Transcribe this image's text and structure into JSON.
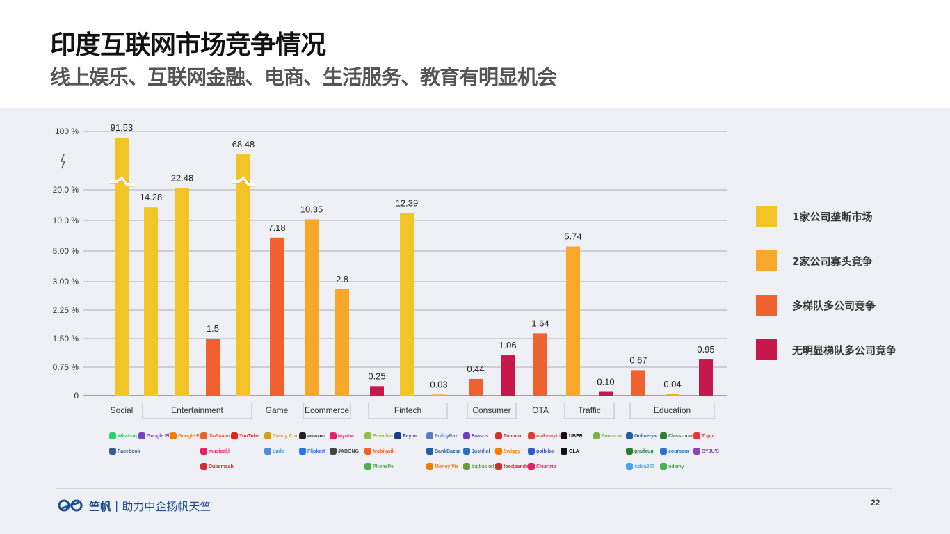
{
  "header": {
    "title": "印度互联网市场竞争情况",
    "subtitle": "线上娱乐、互联网金融、电商、生活服务、教育有明显机会"
  },
  "chart_data": {
    "type": "bar",
    "y_ticks": [
      "0",
      "0.75 %",
      "1.50 %",
      "2.25 %",
      "3.00 %",
      "5.00 %",
      "10.0 %",
      "20.0 %",
      "100 %"
    ],
    "y_tick_values": [
      0,
      0.75,
      1.5,
      2.25,
      3,
      5,
      10,
      20,
      100
    ],
    "axis_break": "between 20.0 % and 100 %",
    "grid": true,
    "legend_position": "right",
    "legend": [
      {
        "label": "1家公司垄断市场",
        "color": "#f2c428"
      },
      {
        "label": "2家公司寡头竞争",
        "color": "#f9a72b"
      },
      {
        "label": "多梯队多公司竞争",
        "color": "#f0622d"
      },
      {
        "label": "无明显梯队多公司竞争",
        "color": "#c8174d"
      }
    ],
    "bars": [
      {
        "value": 91.53,
        "label": "91.53",
        "group": 0,
        "broken": true
      },
      {
        "value": 14.28,
        "label": "14.28",
        "group": 0
      },
      {
        "value": 22.48,
        "label": "22.48",
        "group": 0
      },
      {
        "value": 1.5,
        "label": "1.5",
        "group": 2
      },
      {
        "value": 68.48,
        "label": "68.48",
        "group": 0,
        "broken": true
      },
      {
        "value": 7.18,
        "label": "7.18",
        "group": 2
      },
      {
        "value": 10.35,
        "label": "10.35",
        "group": 1
      },
      {
        "value": 2.8,
        "label": "2.8",
        "group": 1
      },
      {
        "value": 0.25,
        "label": "0.25",
        "group": 3
      },
      {
        "value": 12.39,
        "label": "12.39",
        "group": 0
      },
      {
        "value": 0.03,
        "label": "0.03",
        "group": 1
      },
      {
        "value": 0.44,
        "label": "0.44",
        "group": 2
      },
      {
        "value": 1.06,
        "label": "1.06",
        "group": 3
      },
      {
        "value": 1.64,
        "label": "1.64",
        "group": 2
      },
      {
        "value": 5.74,
        "label": "5.74",
        "group": 1
      },
      {
        "value": 0.1,
        "label": "0.10",
        "group": 3
      },
      {
        "value": 0.67,
        "label": "0.67",
        "group": 2
      },
      {
        "value": 0.04,
        "label": "0.04",
        "group": 1
      },
      {
        "value": 0.95,
        "label": "0.95",
        "group": 3
      }
    ],
    "categories": [
      {
        "label": "Social",
        "bars": [
          0,
          0
        ],
        "bracket": false
      },
      {
        "label": "Entertainment",
        "bars": [
          1,
          4
        ],
        "bracket": true
      },
      {
        "label": "Game",
        "bars": [
          5,
          5
        ],
        "bracket": false
      },
      {
        "label": "Ecommerce",
        "bars": [
          6,
          7
        ],
        "bracket": true
      },
      {
        "label": "Fintech",
        "bars": [
          8,
          10
        ],
        "bracket": true
      },
      {
        "label": "Consumer",
        "bars": [
          11,
          12
        ],
        "bracket": true
      },
      {
        "label": "OTA",
        "bars": [
          13,
          13
        ],
        "bracket": false
      },
      {
        "label": "Traffic",
        "bars": [
          14,
          15
        ],
        "bracket": true
      },
      {
        "label": "Education",
        "bars": [
          16,
          18
        ],
        "bracket": true
      }
    ],
    "logos": [
      {
        "name": "WhatsApp",
        "color": "#25d366",
        "bar": 0,
        "row": 0
      },
      {
        "name": "Facebook",
        "color": "#3b5998",
        "bar": 0,
        "row": 1
      },
      {
        "name": "Google Play Movies",
        "color": "#7b3fc4",
        "bar": 1,
        "row": 0
      },
      {
        "name": "Google Play Music",
        "color": "#f57c00",
        "bar": 2,
        "row": 0
      },
      {
        "name": "JioSaavn",
        "color": "#f0622d",
        "bar": 3,
        "row": 0
      },
      {
        "name": "musical.ly",
        "color": "#e91e63",
        "bar": 3,
        "row": 1
      },
      {
        "name": "Dubsmash",
        "color": "#d32f2f",
        "bar": 3,
        "row": 2
      },
      {
        "name": "YouTube",
        "color": "#e62117",
        "bar": 4,
        "row": 0
      },
      {
        "name": "Candy Crush",
        "color": "#d4a017",
        "bar": 5,
        "row": 0
      },
      {
        "name": "Ludo",
        "color": "#4a90d9",
        "bar": 5,
        "row": 1
      },
      {
        "name": "amazon",
        "color": "#222222",
        "bar": 6,
        "row": 0
      },
      {
        "name": "Flipkart",
        "color": "#2874f0",
        "bar": 6,
        "row": 1
      },
      {
        "name": "Myntra",
        "color": "#e91e63",
        "bar": 7,
        "row": 0
      },
      {
        "name": "JABONG",
        "color": "#444444",
        "bar": 7,
        "row": 1
      },
      {
        "name": "Freecharge",
        "color": "#8bc34a",
        "bar": 8,
        "row": 0
      },
      {
        "name": "Mobikwik",
        "color": "#f0622d",
        "bar": 8,
        "row": 1
      },
      {
        "name": "PhonePe",
        "color": "#4caf50",
        "bar": 8,
        "row": 2
      },
      {
        "name": "Paytm",
        "color": "#1a3a8f",
        "bar": 9,
        "row": 0
      },
      {
        "name": "PolicyBazaar",
        "color": "#5a7fbf",
        "bar": 10,
        "row": 0
      },
      {
        "name": "BankBazaar",
        "color": "#1f5f9f",
        "bar": 10,
        "row": 1
      },
      {
        "name": "Money View",
        "color": "#f57c00",
        "bar": 10,
        "row": 2
      },
      {
        "name": "Zomato",
        "color": "#d32f2f",
        "bar": 12,
        "row": 0
      },
      {
        "name": "Swiggy",
        "color": "#f57c00",
        "bar": 12,
        "row": 1
      },
      {
        "name": "foodpanda",
        "color": "#d32f2f",
        "bar": 12,
        "row": 2
      },
      {
        "name": "Faasos",
        "color": "#6a3fc4",
        "bar": 11,
        "row": 0
      },
      {
        "name": "Justdial",
        "color": "#2c6fbf",
        "bar": 11,
        "row": 1
      },
      {
        "name": "bigbasket",
        "color": "#689f38",
        "bar": 11,
        "row": 2
      },
      {
        "name": "makemytrip",
        "color": "#e53935",
        "bar": 13,
        "row": 0
      },
      {
        "name": "goibibo",
        "color": "#2c5fbf",
        "bar": 13,
        "row": 1
      },
      {
        "name": "Cleartrip",
        "color": "#e91e63",
        "bar": 13,
        "row": 2
      },
      {
        "name": "UBER",
        "color": "#111111",
        "bar": 14,
        "row": 0
      },
      {
        "name": "OLA",
        "color": "#111111",
        "bar": 14,
        "row": 1
      },
      {
        "name": "Zoomcar",
        "color": "#7cb342",
        "bar": 15,
        "row": 0
      },
      {
        "name": "Onlinetyari",
        "color": "#1f5f9f",
        "bar": 16,
        "row": 0
      },
      {
        "name": "gradeup",
        "color": "#2e7d32",
        "bar": 16,
        "row": 1
      },
      {
        "name": "Adda247",
        "color": "#42a5f5",
        "bar": 16,
        "row": 2
      },
      {
        "name": "Classroom",
        "color": "#2e7d32",
        "bar": 17,
        "row": 0
      },
      {
        "name": "coursera",
        "color": "#2a73cc",
        "bar": 17,
        "row": 1
      },
      {
        "name": "udemy",
        "color": "#4caf50",
        "bar": 17,
        "row": 2
      },
      {
        "name": "Toppr",
        "color": "#e53935",
        "bar": 18,
        "row": 0
      },
      {
        "name": "BYJU'S",
        "color": "#8e44ad",
        "bar": 18,
        "row": 1
      }
    ]
  },
  "footer": {
    "brand": "竺帆",
    "separator": "|",
    "slogan": "助力中企扬帆天竺",
    "page": "22"
  }
}
